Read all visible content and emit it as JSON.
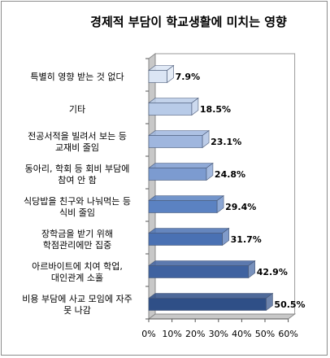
{
  "chart_data": {
    "type": "bar",
    "orientation": "horizontal",
    "title": "경제적 부담이 학교생활에 미치는 영향",
    "categories": [
      [
        "특별히 영향 받는 것 없다"
      ],
      [
        "기타"
      ],
      [
        "전공서적을 빌려서 보는 등",
        "교재비 줄임"
      ],
      [
        "동아리, 학회 등 회비 부담에",
        "참여 안 함"
      ],
      [
        "식당밥을 친구와 나눠먹는 등",
        "식비 줄임"
      ],
      [
        "장학금을 받기 위해",
        "학점관리에만 집중"
      ],
      [
        "아르바이트에 치여 학업,",
        "대인관계 소홀"
      ],
      [
        "비용 부담에 사교 모임에 자주",
        "못 나감"
      ]
    ],
    "values": [
      7.9,
      18.5,
      23.1,
      24.8,
      29.4,
      31.7,
      42.9,
      50.5
    ],
    "value_labels": [
      "7.9%",
      "18.5%",
      "23.1%",
      "24.8%",
      "29.4%",
      "31.7%",
      "42.9%",
      "50.5%"
    ],
    "bar_colors": [
      "#dbe5f4",
      "#b8cbe8",
      "#9fb6de",
      "#7c9bd0",
      "#5b82c2",
      "#4a71b3",
      "#3f62a0",
      "#2f4f87"
    ],
    "xlim": [
      0,
      60
    ],
    "xticks": [
      "0%",
      "10%",
      "20%",
      "30%",
      "40%",
      "50%",
      "60%"
    ],
    "grid": false,
    "legend": "none"
  }
}
